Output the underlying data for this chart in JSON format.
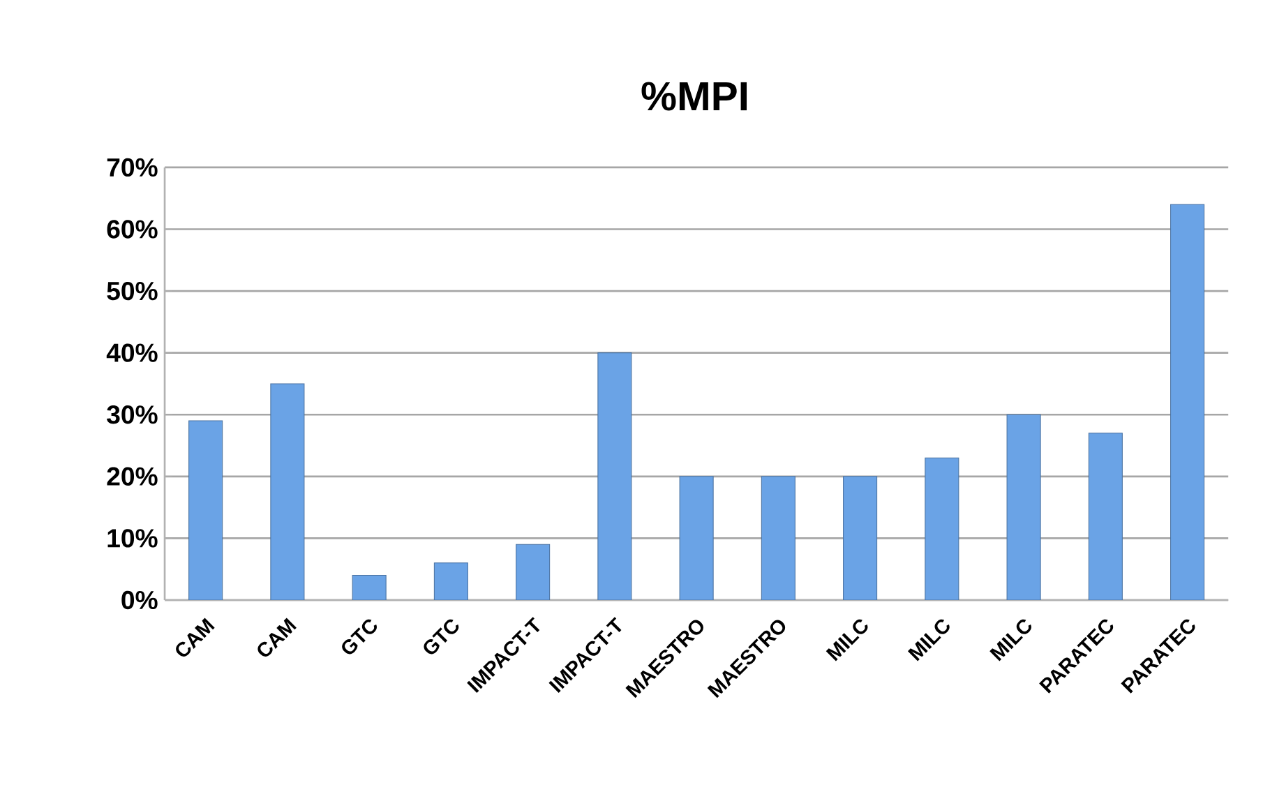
{
  "chart_data": {
    "type": "bar",
    "title": "%MPI",
    "categories": [
      "CAM",
      "CAM",
      "GTC",
      "GTC",
      "IMPACT-T",
      "IMPACT-T",
      "MAESTRO",
      "MAESTRO",
      "MILC",
      "MILC",
      "MILC",
      "PARATEC",
      "PARATEC"
    ],
    "values": [
      29,
      35,
      4,
      6,
      9,
      40,
      20,
      20,
      20,
      23,
      30,
      27,
      64
    ],
    "color": "#6aa3e6",
    "ylim": [
      0,
      70
    ],
    "yticks": [
      {
        "value": 0,
        "label": "0%"
      },
      {
        "value": 10,
        "label": "10%"
      },
      {
        "value": 20,
        "label": "20%"
      },
      {
        "value": 30,
        "label": "30%"
      },
      {
        "value": 40,
        "label": "40%"
      },
      {
        "value": 50,
        "label": "50%"
      },
      {
        "value": 60,
        "label": "60%"
      },
      {
        "value": 70,
        "label": "70%"
      }
    ],
    "grid": "y"
  }
}
